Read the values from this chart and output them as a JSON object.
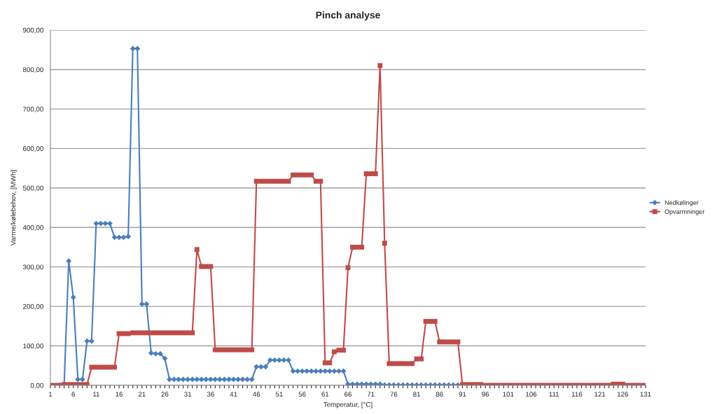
{
  "chart_data": {
    "type": "line",
    "title": "Pinch analyse",
    "xlabel": "Temperatur, [°C]",
    "ylabel": "Varme/kølebehov, [MWh]",
    "categories": [
      "1",
      null,
      null,
      null,
      null,
      "6",
      null,
      null,
      null,
      null,
      "11",
      null,
      null,
      null,
      null,
      "16",
      null,
      null,
      null,
      null,
      "21",
      null,
      null,
      null,
      null,
      "26",
      null,
      null,
      null,
      null,
      "31",
      null,
      null,
      null,
      null,
      "36",
      null,
      null,
      null,
      null,
      "41",
      null,
      null,
      null,
      null,
      "46",
      null,
      null,
      null,
      null,
      "51",
      null,
      null,
      null,
      null,
      "56",
      null,
      null,
      null,
      null,
      "61",
      null,
      null,
      null,
      null,
      "66",
      null,
      null,
      null,
      null,
      "71",
      null,
      null,
      null,
      null,
      "76",
      null,
      null,
      null,
      null,
      "81",
      null,
      null,
      null,
      null,
      "86",
      null,
      null,
      null,
      null,
      "91",
      null,
      null,
      null,
      null,
      "96",
      null,
      null,
      null,
      null,
      "101",
      null,
      null,
      null,
      null,
      "106",
      null,
      null,
      null,
      null,
      "111",
      null,
      null,
      null,
      null,
      "116",
      null,
      null,
      null,
      null,
      "121",
      null,
      null,
      null,
      null,
      "126",
      null,
      null,
      null,
      null,
      "131"
    ],
    "series": [
      {
        "name": "Nedkølinger",
        "color": "#4a7ebb",
        "marker": "diamond",
        "values": [
          null,
          null,
          0,
          2,
          315,
          223,
          15,
          15,
          112,
          112,
          410,
          410,
          410,
          410,
          375,
          375,
          375,
          377,
          853,
          853,
          206,
          206,
          82,
          80,
          80,
          68,
          15,
          15,
          15,
          15,
          15,
          15,
          15,
          15,
          15,
          15,
          15,
          15,
          15,
          15,
          15,
          15,
          15,
          15,
          15,
          47,
          47,
          47,
          64,
          64,
          64,
          64,
          64,
          36,
          36,
          36,
          36,
          36,
          36,
          36,
          36,
          36,
          36,
          36,
          36,
          3,
          3,
          3,
          3,
          3,
          3,
          3,
          3,
          1,
          1,
          1,
          1,
          1,
          1,
          1,
          1,
          1,
          1,
          1,
          1,
          1,
          1,
          1,
          1,
          1,
          0,
          0,
          null,
          null,
          null,
          null,
          null,
          null,
          null,
          null,
          null,
          null,
          null,
          null,
          null,
          null,
          null,
          null,
          null,
          null,
          null,
          null,
          null,
          null,
          null,
          null,
          null,
          null,
          null,
          null,
          null,
          null,
          null,
          null,
          null,
          null,
          null,
          null,
          null,
          null,
          null
        ]
      },
      {
        "name": "Opvarmninger",
        "color": "#be4b48",
        "marker": "square",
        "values": [
          0,
          0,
          0,
          2,
          2,
          2,
          2,
          2,
          2,
          46,
          46,
          46,
          46,
          46,
          46,
          131,
          131,
          131,
          133,
          133,
          133,
          133,
          133,
          133,
          133,
          133,
          133,
          133,
          133,
          133,
          133,
          133,
          344,
          301,
          301,
          301,
          90,
          90,
          90,
          90,
          90,
          90,
          90,
          90,
          90,
          517,
          517,
          517,
          517,
          517,
          517,
          517,
          517,
          533,
          533,
          533,
          533,
          533,
          517,
          517,
          57,
          57,
          85,
          89,
          89,
          298,
          350,
          350,
          350,
          536,
          536,
          536,
          810,
          360,
          55,
          55,
          55,
          55,
          55,
          55,
          67,
          67,
          162,
          162,
          162,
          110,
          110,
          110,
          110,
          110,
          2,
          2,
          2,
          2,
          2,
          0,
          0,
          0,
          0,
          0,
          0,
          0,
          0,
          0,
          0,
          0,
          0,
          0,
          0,
          0,
          0,
          0,
          0,
          0,
          0,
          0,
          0,
          0,
          0,
          0,
          0,
          0,
          0,
          3,
          3,
          3,
          0,
          0,
          0,
          0,
          0
        ]
      }
    ],
    "ylim": [
      0,
      900
    ],
    "yticks": [
      {
        "value": 0,
        "label": "0,00"
      },
      {
        "value": 100,
        "label": "100,00"
      },
      {
        "value": 200,
        "label": "200,00"
      },
      {
        "value": 300,
        "label": "300,00"
      },
      {
        "value": 400,
        "label": "400,00"
      },
      {
        "value": 500,
        "label": "500,00"
      },
      {
        "value": 600,
        "label": "600,00"
      },
      {
        "value": 700,
        "label": "700,00"
      },
      {
        "value": 800,
        "label": "800,00"
      },
      {
        "value": 900,
        "label": "900,00"
      }
    ],
    "grid": "y",
    "legend": "right",
    "line_style": "solid"
  }
}
